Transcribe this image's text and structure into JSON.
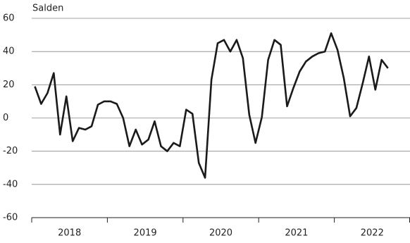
{
  "chart_data": {
    "type": "line",
    "y_axis_label": "Salden",
    "xlabels": [
      "2018",
      "2019",
      "2020",
      "2021",
      "2022"
    ],
    "values": [
      19,
      8.5,
      15,
      27,
      -10,
      13,
      -14,
      -6,
      -7,
      -5,
      8,
      10,
      10,
      8.5,
      0,
      -17,
      -7,
      -16,
      -13,
      -2,
      -17,
      -20,
      -15,
      -17,
      5,
      2.5,
      -27,
      -36,
      23,
      45,
      47,
      40,
      47,
      36,
      2,
      -15,
      0.5,
      35,
      47,
      44,
      7,
      18,
      28,
      34,
      37,
      39,
      40,
      51,
      41,
      24,
      1,
      6,
      21,
      37,
      17,
      35,
      30
    ],
    "color": "#1a1a1a",
    "ylim": [
      -60,
      60
    ],
    "yticks": [
      -60,
      -40,
      -20,
      0,
      20,
      40,
      60
    ],
    "grid": true
  }
}
